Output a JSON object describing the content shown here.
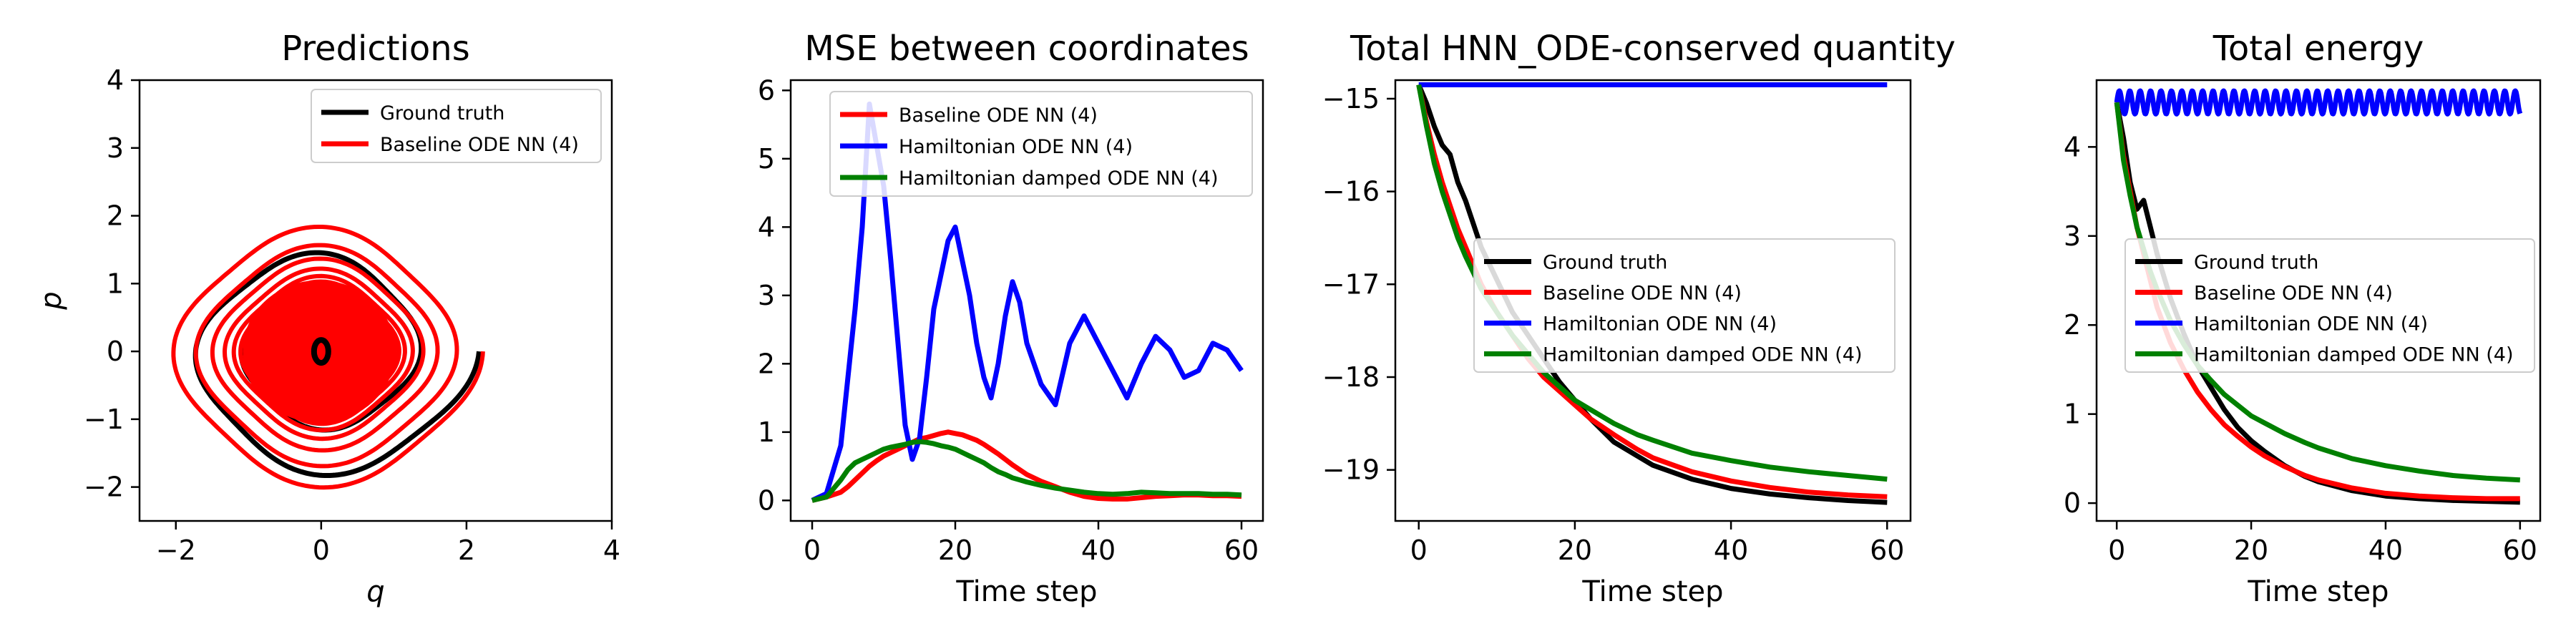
{
  "chart_data": [
    {
      "type": "line",
      "title": "Predictions",
      "xlabel": "q",
      "ylabel": "p",
      "xlim": [
        -2.5,
        4
      ],
      "ylim": [
        -2.5,
        4
      ],
      "xticks": [
        -2,
        0,
        2,
        4
      ],
      "yticks": [
        -2,
        -1,
        0,
        1,
        2,
        3,
        4
      ],
      "xtick_labels": [
        "−2",
        "0",
        "2",
        "4"
      ],
      "ytick_labels": [
        "−2",
        "−1",
        "0",
        "1",
        "2",
        "3",
        "4"
      ],
      "legend_position": "top-right",
      "series": [
        {
          "name": "Ground truth",
          "color": "#000000",
          "decay": 0.012,
          "start": [
            2.05,
            0
          ],
          "end_radius": 0.04
        },
        {
          "name": "Baseline ODE NN (4)",
          "color": "#ff0000",
          "decay": 0.012,
          "start": [
            2.1,
            0
          ],
          "end_radius": 0.8
        }
      ]
    },
    {
      "type": "line",
      "title": "MSE between coordinates",
      "xlabel": "Time step",
      "ylabel": "",
      "xlim": [
        -3,
        63
      ],
      "ylim": [
        -0.3,
        6.15
      ],
      "xticks": [
        0,
        20,
        40,
        60
      ],
      "yticks": [
        0,
        1,
        2,
        3,
        4,
        5,
        6
      ],
      "xtick_labels": [
        "0",
        "20",
        "40",
        "60"
      ],
      "ytick_labels": [
        "0",
        "1",
        "2",
        "3",
        "4",
        "5",
        "6"
      ],
      "legend_position": "top-right",
      "x": [
        0,
        2,
        4,
        5,
        6,
        7,
        8,
        9,
        10,
        11,
        12,
        13,
        14,
        15,
        16,
        17,
        18,
        19,
        20,
        21,
        22,
        23,
        24,
        25,
        26,
        27,
        28,
        29,
        30,
        32,
        34,
        36,
        38,
        40,
        42,
        44,
        46,
        48,
        50,
        52,
        54,
        56,
        58,
        60
      ],
      "series": [
        {
          "name": "Baseline ODE NN (4)",
          "color": "#ff0000",
          "values": [
            0,
            0.05,
            0.12,
            0.2,
            0.3,
            0.4,
            0.5,
            0.58,
            0.65,
            0.7,
            0.75,
            0.8,
            0.85,
            0.9,
            0.92,
            0.95,
            0.98,
            1.0,
            0.98,
            0.96,
            0.92,
            0.88,
            0.82,
            0.75,
            0.68,
            0.6,
            0.52,
            0.45,
            0.38,
            0.28,
            0.2,
            0.12,
            0.06,
            0.03,
            0.02,
            0.02,
            0.04,
            0.06,
            0.07,
            0.08,
            0.08,
            0.07,
            0.07,
            0.06
          ]
        },
        {
          "name": "Hamiltonian ODE NN (4)",
          "color": "#0000ff",
          "values": [
            0,
            0.1,
            0.8,
            1.8,
            2.8,
            4.0,
            5.8,
            5.2,
            4.6,
            3.5,
            2.3,
            1.1,
            0.6,
            0.9,
            1.8,
            2.8,
            3.3,
            3.8,
            4.0,
            3.5,
            3.0,
            2.3,
            1.8,
            1.5,
            2.0,
            2.7,
            3.2,
            2.9,
            2.3,
            1.7,
            1.4,
            2.3,
            2.7,
            2.3,
            1.9,
            1.5,
            2.0,
            2.4,
            2.2,
            1.8,
            1.9,
            2.3,
            2.2,
            1.9
          ]
        },
        {
          "name": "Hamiltonian damped ODE NN (4)",
          "color": "#008000",
          "values": [
            0,
            0.05,
            0.3,
            0.45,
            0.55,
            0.6,
            0.65,
            0.7,
            0.75,
            0.78,
            0.8,
            0.82,
            0.85,
            0.86,
            0.85,
            0.83,
            0.8,
            0.78,
            0.75,
            0.7,
            0.65,
            0.6,
            0.55,
            0.48,
            0.42,
            0.38,
            0.33,
            0.3,
            0.27,
            0.22,
            0.18,
            0.15,
            0.12,
            0.1,
            0.09,
            0.1,
            0.12,
            0.11,
            0.1,
            0.1,
            0.1,
            0.09,
            0.09,
            0.08
          ]
        }
      ]
    },
    {
      "type": "line",
      "title": "Total HNN_ODE-conserved quantity",
      "xlabel": "Time step",
      "ylabel": "",
      "xlim": [
        -3,
        63
      ],
      "ylim": [
        -19.55,
        -14.8
      ],
      "xticks": [
        0,
        20,
        40,
        60
      ],
      "yticks": [
        -19,
        -18,
        -17,
        -16,
        -15
      ],
      "xtick_labels": [
        "0",
        "20",
        "40",
        "60"
      ],
      "ytick_labels": [
        "−19",
        "−18",
        "−17",
        "−16",
        "−15"
      ],
      "legend_position": "center-right",
      "x": [
        0,
        1,
        2,
        3,
        4,
        5,
        6,
        8,
        10,
        12,
        14,
        16,
        18,
        20,
        22,
        25,
        28,
        30,
        35,
        40,
        45,
        50,
        55,
        60
      ],
      "series": [
        {
          "name": "Ground truth",
          "color": "#000000",
          "values": [
            -14.85,
            -15.05,
            -15.3,
            -15.5,
            -15.6,
            -15.9,
            -16.1,
            -16.6,
            -16.95,
            -17.3,
            -17.55,
            -17.8,
            -18.05,
            -18.25,
            -18.45,
            -18.7,
            -18.85,
            -18.95,
            -19.1,
            -19.2,
            -19.26,
            -19.3,
            -19.33,
            -19.35
          ]
        },
        {
          "name": "Baseline ODE NN (4)",
          "color": "#ff0000",
          "values": [
            -14.85,
            -15.25,
            -15.6,
            -15.9,
            -16.15,
            -16.4,
            -16.6,
            -17.0,
            -17.3,
            -17.55,
            -17.8,
            -18.0,
            -18.15,
            -18.3,
            -18.45,
            -18.62,
            -18.78,
            -18.87,
            -19.02,
            -19.12,
            -19.19,
            -19.24,
            -19.27,
            -19.29
          ]
        },
        {
          "name": "Hamiltonian ODE NN (4)",
          "color": "#0000ff",
          "values": [
            -14.85,
            -14.85,
            -14.85,
            -14.85,
            -14.85,
            -14.85,
            -14.85,
            -14.85,
            -14.85,
            -14.85,
            -14.85,
            -14.85,
            -14.85,
            -14.85,
            -14.85,
            -14.85,
            -14.85,
            -14.85,
            -14.85,
            -14.85,
            -14.85,
            -14.85,
            -14.85,
            -14.85
          ]
        },
        {
          "name": "Hamiltonian damped ODE NN (4)",
          "color": "#008000",
          "values": [
            -14.85,
            -15.3,
            -15.7,
            -16.0,
            -16.25,
            -16.5,
            -16.7,
            -17.05,
            -17.3,
            -17.55,
            -17.75,
            -17.95,
            -18.1,
            -18.25,
            -18.35,
            -18.5,
            -18.62,
            -18.68,
            -18.82,
            -18.9,
            -18.97,
            -19.02,
            -19.06,
            -19.1
          ]
        }
      ]
    },
    {
      "type": "line",
      "title": "Total energy",
      "xlabel": "Time step",
      "ylabel": "",
      "xlim": [
        -3,
        63
      ],
      "ylim": [
        -0.2,
        4.75
      ],
      "xticks": [
        0,
        20,
        40,
        60
      ],
      "yticks": [
        0,
        1,
        2,
        3,
        4
      ],
      "xtick_labels": [
        "0",
        "20",
        "40",
        "60"
      ],
      "ytick_labels": [
        "0",
        "1",
        "2",
        "3",
        "4"
      ],
      "legend_position": "center-right",
      "x": [
        0,
        1,
        2,
        3,
        4,
        5,
        6,
        8,
        10,
        12,
        14,
        16,
        18,
        20,
        22,
        25,
        28,
        30,
        35,
        40,
        45,
        50,
        55,
        60
      ],
      "series": [
        {
          "name": "Ground truth",
          "color": "#000000",
          "values": [
            4.5,
            4.1,
            3.6,
            3.3,
            3.4,
            3.1,
            2.8,
            2.3,
            1.9,
            1.55,
            1.3,
            1.05,
            0.85,
            0.7,
            0.58,
            0.42,
            0.3,
            0.24,
            0.14,
            0.08,
            0.05,
            0.03,
            0.02,
            0.01
          ]
        },
        {
          "name": "Baseline ODE NN (4)",
          "color": "#ff0000",
          "values": [
            4.5,
            3.9,
            3.5,
            3.1,
            2.8,
            2.5,
            2.2,
            1.8,
            1.5,
            1.25,
            1.05,
            0.88,
            0.75,
            0.63,
            0.53,
            0.41,
            0.31,
            0.26,
            0.17,
            0.11,
            0.08,
            0.06,
            0.05,
            0.05
          ]
        },
        {
          "name": "Hamiltonian ODE NN (4)",
          "color": "#0000ff",
          "values": [
            4.5,
            4.5,
            4.5,
            4.5,
            4.5,
            4.5,
            4.5,
            4.5,
            4.5,
            4.5,
            4.5,
            4.5,
            4.5,
            4.5,
            4.5,
            4.5,
            4.5,
            4.5,
            4.5,
            4.5,
            4.5,
            4.5,
            4.5,
            4.5
          ],
          "oscillation_amplitude": 0.13
        },
        {
          "name": "Hamiltonian damped ODE NN (4)",
          "color": "#008000",
          "values": [
            4.5,
            3.85,
            3.45,
            3.1,
            2.85,
            2.6,
            2.4,
            2.05,
            1.78,
            1.55,
            1.38,
            1.22,
            1.1,
            0.98,
            0.9,
            0.78,
            0.68,
            0.62,
            0.5,
            0.42,
            0.36,
            0.31,
            0.28,
            0.26
          ]
        }
      ]
    }
  ]
}
